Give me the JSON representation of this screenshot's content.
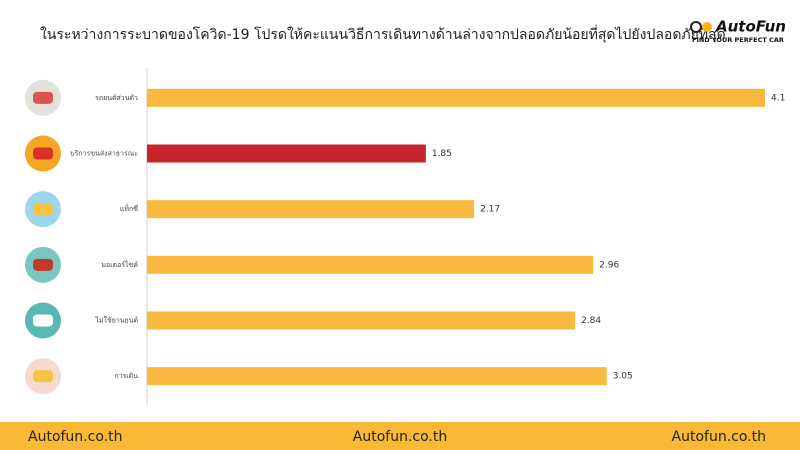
{
  "chart_data": {
    "type": "bar",
    "orientation": "horizontal",
    "title": "ในระหว่างการระบาดของโควิด-19 โปรดให้คะแนนวิธีการเดินทางด้านล่างจากปลอดภัยน้อยที่สุดไปยังปลอดภัยที่สุด",
    "categories": [
      "รถยนต์ส่วนตัว",
      "บริการขนส่งสาธารณะ",
      "แท็กซี่",
      "มอเตอร์ไซค์",
      "ไม่ใช้ยานยนต์",
      "การเดิน"
    ],
    "values": [
      4.1,
      1.85,
      2.17,
      2.96,
      2.84,
      3.05
    ],
    "colors": [
      "#f9b93e",
      "#c8242e",
      "#f9b93e",
      "#f9b93e",
      "#f9b93e",
      "#f9b93e"
    ],
    "xlim": [
      0,
      4.1
    ]
  },
  "logo": {
    "name": "AutoFun",
    "tagline": "FIND YOUR PERFECT CAR"
  },
  "footer": [
    "Autofun.co.th",
    "Autofun.co.th",
    "Autofun.co.th"
  ]
}
